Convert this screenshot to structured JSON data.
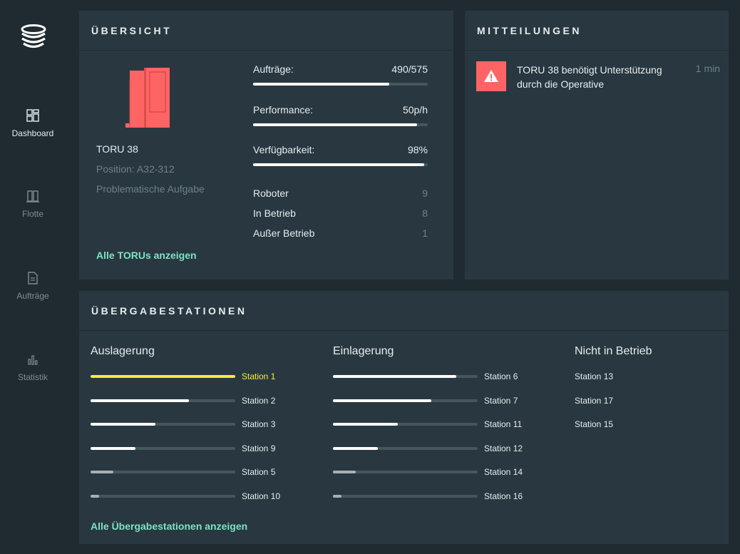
{
  "colors": {
    "background": "#1f2b30",
    "card": "#293840",
    "accent_link": "#7ee2c4",
    "alert": "#ff6464",
    "highlight": "#f4ec3c",
    "bar_fill": "#ffffff",
    "bar_track": "#46565d"
  },
  "sidebar": {
    "logo_icon": "stacked-discs-logo",
    "items": [
      {
        "label": "Dashboard",
        "icon": "dashboard-grid-icon",
        "active": true
      },
      {
        "label": "Flotte",
        "icon": "fleet-icon",
        "active": false
      },
      {
        "label": "Aufträge",
        "icon": "document-icon",
        "active": false
      },
      {
        "label": "Statistik",
        "icon": "bar-chart-icon",
        "active": false
      }
    ]
  },
  "overview": {
    "title": "ÜBERSICHT",
    "robot": {
      "name": "TORU 38",
      "position": "Position: A32-312",
      "status": "Problematische Aufgabe",
      "icon": "robot-icon",
      "icon_color": "#ff6464"
    },
    "metrics": [
      {
        "label": "Aufträge:",
        "value": "490/575",
        "fraction": 0.78
      },
      {
        "label": "Performance:",
        "value": "50p/h",
        "fraction": 0.94
      },
      {
        "label": "Verfügbarkeit:",
        "value": "98%",
        "fraction": 0.98
      }
    ],
    "stats": [
      {
        "label": "Roboter",
        "value": "9"
      },
      {
        "label": "In Betrieb",
        "value": "8"
      },
      {
        "label": "Außer Betrieb",
        "value": "1"
      }
    ],
    "link": "Alle TORUs anzeigen"
  },
  "notifications": {
    "title": "MITTEILUNGEN",
    "items": [
      {
        "icon": "warning-icon",
        "text": "TORU 38 benötigt Unterstützung durch die Operative",
        "time": "1 min"
      }
    ]
  },
  "stations": {
    "title": "ÜBERGABESTATIONEN",
    "columns": [
      {
        "title": "Auslagerung",
        "items": [
          {
            "label": "Station 1",
            "fraction": 1.0,
            "highlight": true
          },
          {
            "label": "Station 2",
            "fraction": 0.68
          },
          {
            "label": "Station 3",
            "fraction": 0.45
          },
          {
            "label": "Station 9",
            "fraction": 0.31
          },
          {
            "label": "Station 5",
            "fraction": 0.16
          },
          {
            "label": "Station 10",
            "fraction": 0.06
          }
        ]
      },
      {
        "title": "Einlagerung",
        "items": [
          {
            "label": "Station 6",
            "fraction": 0.85
          },
          {
            "label": "Station 7",
            "fraction": 0.68
          },
          {
            "label": "Station 11",
            "fraction": 0.45
          },
          {
            "label": "Station 12",
            "fraction": 0.31
          },
          {
            "label": "Station 14",
            "fraction": 0.16
          },
          {
            "label": "Station 16",
            "fraction": 0.06
          }
        ]
      },
      {
        "title": "Nicht in Betrieb",
        "items": [
          {
            "label": "Station 13"
          },
          {
            "label": "Station 17"
          },
          {
            "label": "Station 15"
          }
        ]
      }
    ],
    "link": "Alle Übergabestationen anzeigen"
  }
}
